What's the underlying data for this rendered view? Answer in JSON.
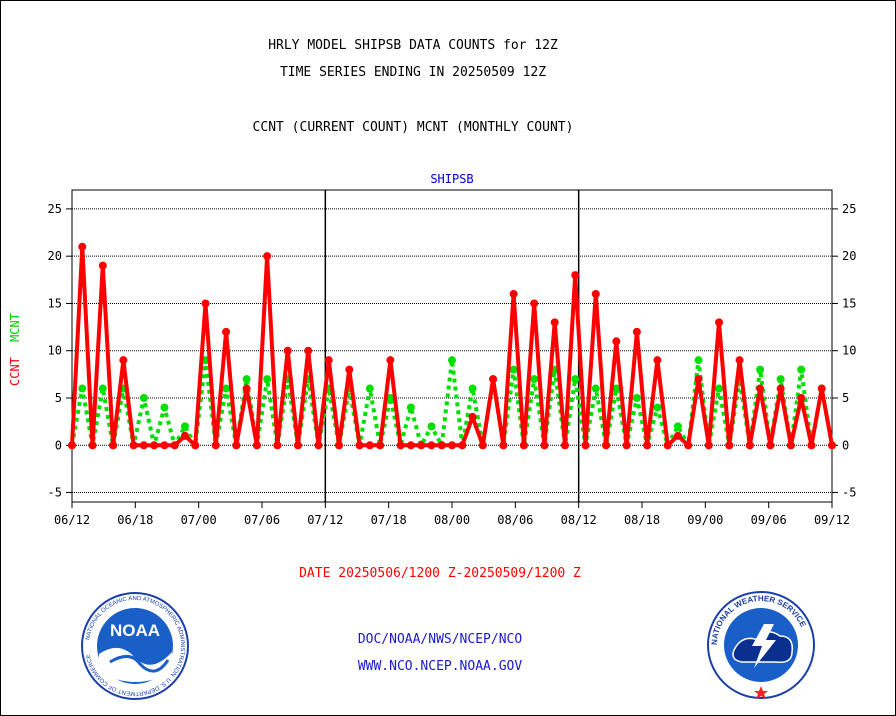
{
  "header": {
    "line1": "HRLY MODEL SHIPSB DATA COUNTS for 12Z",
    "line2": "TIME SERIES ENDING IN 20250509 12Z",
    "line3": "CCNT (CURRENT COUNT) MCNT (MONTHLY COUNT)"
  },
  "footer": {
    "date_range": "DATE 20250506/1200 Z-20250509/1200 Z",
    "org": "DOC/NOAA/NWS/NCEP/NCO",
    "url": "WWW.NCO.NCEP.NOAA.GOV"
  },
  "logos": {
    "noaa_ring_text": "NATIONAL OCEANIC AND ATMOSPHERIC ADMINISTRATION",
    "noaa_bottom_text": "U.S. DEPARTMENT OF COMMERCE",
    "noaa_label": "NOAA",
    "nws_ring_text": "NATIONAL WEATHER SERVICE"
  },
  "chart_data": {
    "type": "line",
    "title": "SHIPSB",
    "ylabel_left": "CCNT",
    "ylabel_right": "MCNT",
    "ylim": [
      -6,
      27
    ],
    "yticks": [
      -5,
      0,
      5,
      10,
      15,
      20,
      25
    ],
    "xticks": [
      "06/12",
      "06/18",
      "07/00",
      "07/06",
      "07/12",
      "07/18",
      "08/00",
      "08/06",
      "08/12",
      "08/18",
      "09/00",
      "09/06",
      "09/12"
    ],
    "x_major_divisions": [
      "07/12",
      "08/12"
    ],
    "grid": true,
    "colors": {
      "ccnt": "#ff0000",
      "mcnt": "#00e000",
      "title": "#0000cc",
      "date": "#ff0000",
      "credits": "#1a1acc"
    },
    "series": [
      {
        "name": "CCNT",
        "color": "#ff0000",
        "style": "solid",
        "values": [
          0,
          21,
          0,
          19,
          0,
          9,
          0,
          0,
          0,
          0,
          0,
          1,
          0,
          15,
          0,
          12,
          0,
          6,
          0,
          20,
          0,
          10,
          0,
          10,
          0,
          9,
          0,
          8,
          0,
          0,
          0,
          9,
          0,
          0,
          0,
          0,
          0,
          0,
          0,
          3,
          0,
          7,
          0,
          16,
          0,
          15,
          0,
          13,
          0,
          18,
          0,
          16,
          0,
          11,
          0,
          12,
          0,
          9,
          0,
          1,
          0,
          7,
          0,
          13,
          0,
          9,
          0,
          6,
          0,
          6,
          0,
          5,
          0,
          6,
          0
        ]
      },
      {
        "name": "MCNT",
        "color": "#00e000",
        "style": "dotted",
        "values": [
          0,
          6,
          0,
          6,
          0,
          6,
          0,
          5,
          0,
          4,
          0,
          2,
          0,
          9,
          0,
          6,
          0,
          7,
          0,
          7,
          0,
          7,
          0,
          7,
          0,
          6,
          0,
          6,
          0,
          6,
          0,
          5,
          0,
          4,
          0,
          2,
          0,
          9,
          0,
          6,
          0,
          7,
          0,
          8,
          0,
          7,
          0,
          8,
          0,
          7,
          0,
          6,
          0,
          6,
          0,
          5,
          0,
          4,
          0,
          2,
          0,
          9,
          0,
          6,
          0,
          7,
          0,
          8,
          0,
          7,
          0,
          8,
          0,
          6,
          0
        ]
      }
    ]
  }
}
